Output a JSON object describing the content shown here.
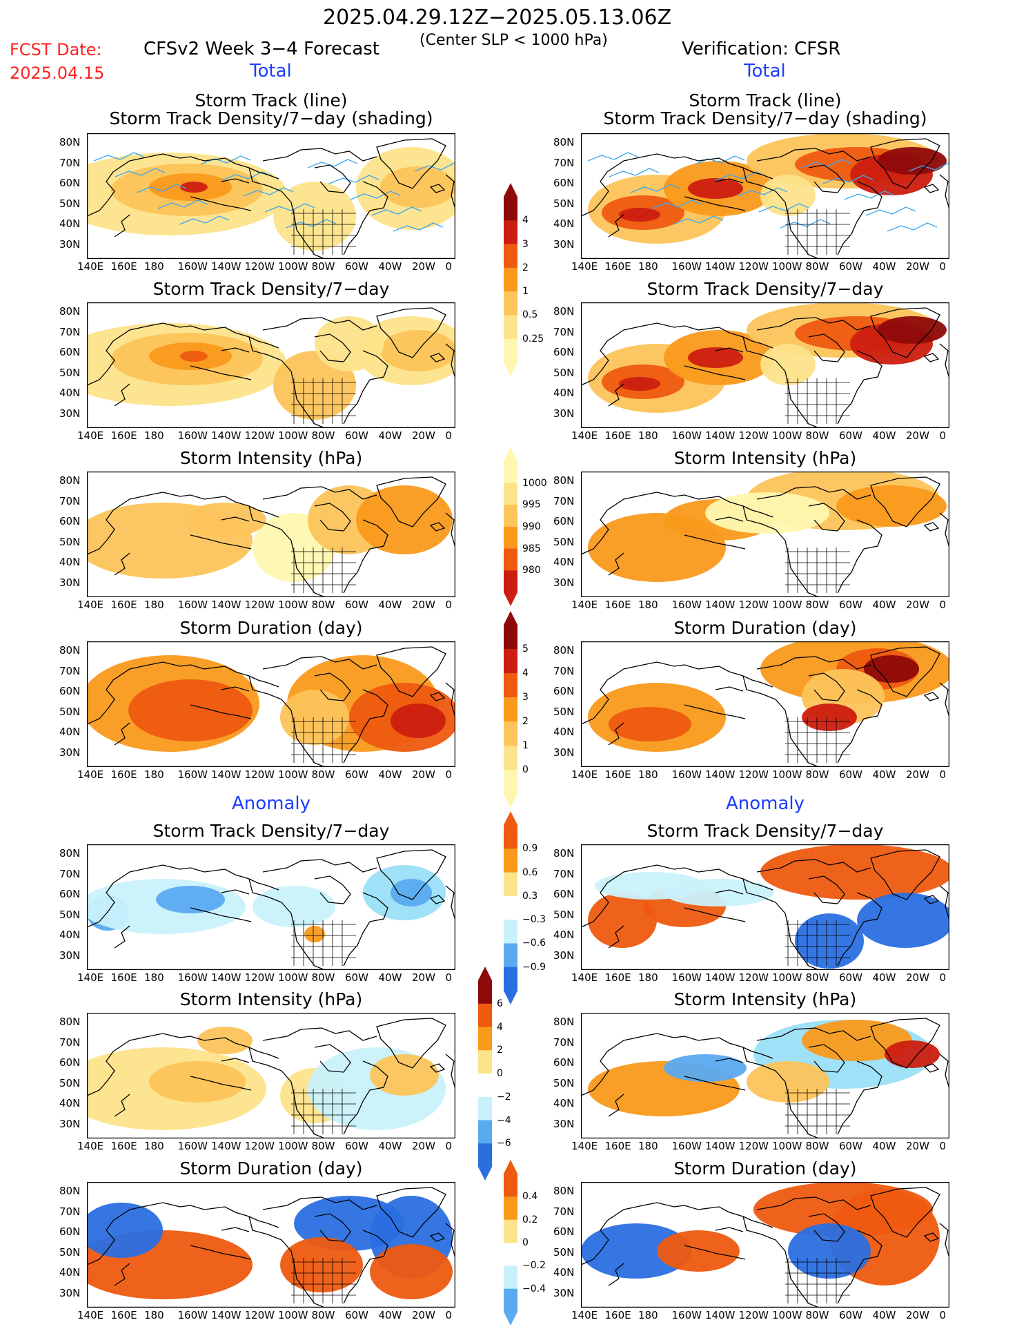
{
  "header": {
    "date_range": "2025.04.29.12Z−2025.05.13.06Z",
    "criterion": "(Center SLP < 1000 hPa)",
    "fcst_label": "FCST Date:",
    "fcst_date": "2025.04.15",
    "left_model": "CFSv2 Week 3−4 Forecast",
    "right_model": "Verification: CFSR"
  },
  "section_labels": {
    "total": "Total",
    "anomaly": "Anomaly"
  },
  "panel_titles": {
    "track_line": "Storm Track (line)",
    "track_shading": "Storm Track Density/7−day (shading)",
    "density": "Storm Track Density/7−day",
    "intensity": "Storm Intensity (hPa)",
    "duration": "Storm Duration (day)"
  },
  "axes": {
    "lat_ticks": [
      "80N",
      "70N",
      "60N",
      "50N",
      "40N",
      "30N"
    ],
    "lon_ticks": [
      "140E",
      "160E",
      "180",
      "160W",
      "140W",
      "120W",
      "100W",
      "80W",
      "60W",
      "40W",
      "20W",
      "0"
    ]
  },
  "colorbars": {
    "density_total": [
      "4",
      "3",
      "2",
      "1",
      "0.5",
      "0.25"
    ],
    "intensity_total": [
      "1000",
      "995",
      "990",
      "985",
      "980"
    ],
    "duration_total": [
      "5",
      "4",
      "3",
      "2",
      "1",
      "0"
    ],
    "density_anom": [
      "0.9",
      "0.6",
      "0.3",
      "−0.3",
      "−0.6",
      "−0.9"
    ],
    "intensity_anom": [
      "6",
      "4",
      "2",
      "0",
      "−2",
      "−4",
      "−6"
    ],
    "duration_anom": [
      "0.4",
      "0.2",
      "0",
      "−0.2",
      "−0.4"
    ]
  },
  "colors": {
    "warm": [
      "#fff7b0",
      "#fde38a",
      "#fcc45a",
      "#f99a1c",
      "#ee5a10",
      "#cc1e10",
      "#8e0a0a"
    ],
    "cool": [
      "#c9f1fb",
      "#9adff7",
      "#5aaaf0",
      "#2a6fe0",
      "#0a44b8"
    ],
    "track_line": "#3ea8ee"
  }
}
